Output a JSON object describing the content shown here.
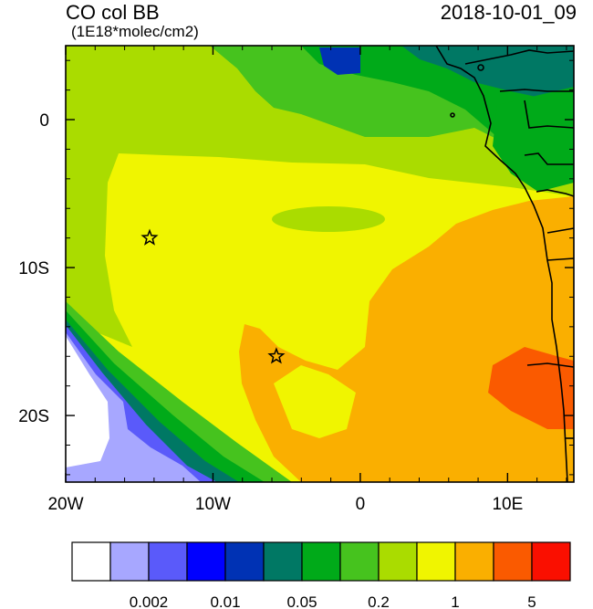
{
  "header": {
    "title": "CO col BB",
    "units": "(1E18*molec/cm2)",
    "datetime": "2018-10-01_09"
  },
  "map": {
    "lon_range": [
      -20,
      14.5
    ],
    "lat_range": [
      -24.5,
      5
    ],
    "x_ticks": [
      {
        "value": -20,
        "label": "20W"
      },
      {
        "value": -10,
        "label": "10W"
      },
      {
        "value": 0,
        "label": "0"
      },
      {
        "value": 10,
        "label": "10E"
      }
    ],
    "y_ticks": [
      {
        "value": 0,
        "label": "0"
      },
      {
        "value": -10,
        "label": "10S"
      },
      {
        "value": -20,
        "label": "20S"
      }
    ],
    "markers": [
      {
        "type": "star",
        "lon": -14.3,
        "lat": -8.0
      },
      {
        "type": "star",
        "lon": -5.7,
        "lat": -16.0
      }
    ]
  },
  "colorbar": {
    "colors": [
      "#ffffff",
      "#a7a7ff",
      "#5a5afa",
      "#0000ff",
      "#0032b4",
      "#007864",
      "#00aa19",
      "#46c31e",
      "#aadc00",
      "#f0f500",
      "#faaf00",
      "#fa5a00",
      "#fa0f00"
    ],
    "labels": [
      {
        "text": "0.002",
        "boundary": 2
      },
      {
        "text": "0.01",
        "boundary": 4
      },
      {
        "text": "0.05",
        "boundary": 6
      },
      {
        "text": "0.2",
        "boundary": 8
      },
      {
        "text": "1",
        "boundary": 10
      },
      {
        "text": "5",
        "boundary": 12
      }
    ]
  }
}
